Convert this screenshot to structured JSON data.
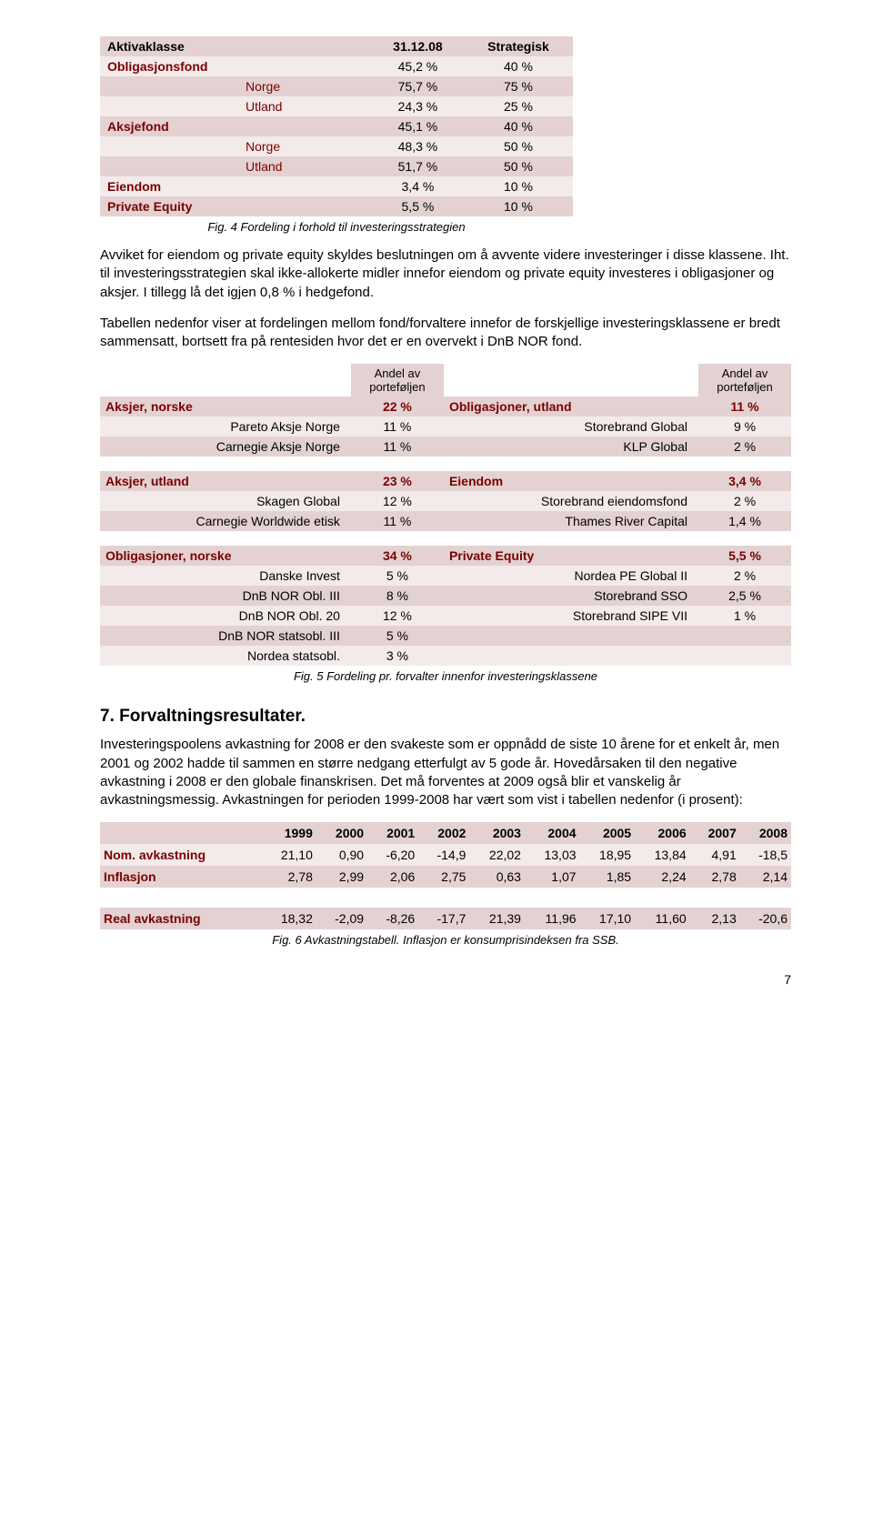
{
  "colors": {
    "accent": "#7a0000",
    "band_dark": "#e4d2d2",
    "band_light": "#f3eaea"
  },
  "t1": {
    "head": {
      "c1": "Aktivaklasse",
      "c2": "31.12.08",
      "c3": "Strategisk"
    },
    "rows": [
      {
        "label": "Obligasjonsfond",
        "v1": "45,2 %",
        "v2": "40 %",
        "cls": "r-light"
      },
      {
        "sub": "Norge",
        "v1": "75,7 %",
        "v2": "75 %",
        "cls": "r-dark"
      },
      {
        "sub": "Utland",
        "v1": "24,3 %",
        "v2": "25 %",
        "cls": "r-light"
      },
      {
        "label": "Aksjefond",
        "v1": "45,1 %",
        "v2": "40 %",
        "cls": "r-dark"
      },
      {
        "sub": "Norge",
        "v1": "48,3 %",
        "v2": "50 %",
        "cls": "r-light"
      },
      {
        "sub": "Utland",
        "v1": "51,7 %",
        "v2": "50 %",
        "cls": "r-dark"
      },
      {
        "label": "Eiendom",
        "v1": "3,4 %",
        "v2": "10 %",
        "cls": "r-light"
      },
      {
        "label": "Private Equity",
        "v1": "5,5 %",
        "v2": "10 %",
        "cls": "r-dark"
      }
    ],
    "caption": "Fig. 4 Fordeling i forhold til investeringsstrategien"
  },
  "para1": "Avviket for eiendom og private equity skyldes beslutningen om å avvente videre investeringer i disse klassene. Iht. til investeringsstrategien skal ikke-allokerte midler innefor eiendom og private equity investeres i obligasjoner og aksjer. I tillegg lå det igjen 0,8 % i hedgefond.",
  "para2": "Tabellen nedenfor viser at fordelingen mellom fond/forvaltere innefor de forskjellige investeringsklassene er bredt sammensatt, bortsett fra på rentesiden hvor det er en overvekt i DnB NOR fond.",
  "t2": {
    "hdr": "Andel av\nporteføljen",
    "g1": {
      "left": "Aksjer, norske",
      "lp": "22 %",
      "right": "Obligasjoner, utland",
      "rp": "11 %"
    },
    "r1a": {
      "l": "Pareto Aksje Norge",
      "lp": "11 %",
      "r": "Storebrand Global",
      "rp": "9 %"
    },
    "r1b": {
      "l": "Carnegie Aksje Norge",
      "lp": "11 %",
      "r": "KLP Global",
      "rp": "2 %"
    },
    "g2": {
      "left": "Aksjer, utland",
      "lp": "23 %",
      "right": "Eiendom",
      "rp": "3,4 %"
    },
    "r2a": {
      "l": "Skagen Global",
      "lp": "12 %",
      "r": "Storebrand eiendomsfond",
      "rp": "2 %"
    },
    "r2b": {
      "l": "Carnegie Worldwide etisk",
      "lp": "11 %",
      "r": "Thames River Capital",
      "rp": "1,4 %"
    },
    "g3": {
      "left": "Obligasjoner, norske",
      "lp": "34 %",
      "right": "Private Equity",
      "rp": "5,5 %"
    },
    "r3a": {
      "l": "Danske Invest",
      "lp": "5 %",
      "r": "Nordea PE Global II",
      "rp": "2 %"
    },
    "r3b": {
      "l": "DnB NOR Obl. III",
      "lp": "8 %",
      "r": "Storebrand SSO",
      "rp": "2,5 %"
    },
    "r3c": {
      "l": "DnB NOR Obl. 20",
      "lp": "12 %",
      "r": "Storebrand SIPE VII",
      "rp": "1 %"
    },
    "r3d": {
      "l": "DnB NOR statsobl. III",
      "lp": "5 %",
      "r": "",
      "rp": ""
    },
    "r3e": {
      "l": "Nordea statsobl.",
      "lp": "3 %",
      "r": "",
      "rp": ""
    },
    "caption": "Fig. 5 Fordeling pr. forvalter innenfor investeringsklassene"
  },
  "h2": "7.  Forvaltningsresultater.",
  "para3": "Investeringspoolens avkastning for 2008 er den svakeste som er oppnådd de siste 10 årene for et enkelt år, men 2001 og 2002 hadde til sammen en større nedgang etterfulgt av 5 gode år. Hovedårsaken til den negative avkastning i 2008 er den globale finanskrisen. Det må forventes at 2009 også blir et vanskelig år avkastningsmessig. Avkastningen for perioden 1999-2008 har vært som vist i tabellen nedenfor (i prosent):",
  "t3": {
    "years": [
      "1999",
      "2000",
      "2001",
      "2002",
      "2003",
      "2004",
      "2005",
      "2006",
      "2007",
      "2008"
    ],
    "rows": [
      {
        "label": "Nom. avkastning",
        "v": [
          "21,10",
          "0,90",
          "-6,20",
          "-14,9",
          "22,02",
          "13,03",
          "18,95",
          "13,84",
          "4,91",
          "-18,5"
        ],
        "cls": "row-a"
      },
      {
        "label": "Inflasjon",
        "v": [
          "2,78",
          "2,99",
          "2,06",
          "2,75",
          "0,63",
          "1,07",
          "1,85",
          "2,24",
          "2,78",
          "2,14"
        ],
        "cls": "row-b"
      },
      {
        "label": "Real avkastning",
        "v": [
          "18,32",
          "-2,09",
          "-8,26",
          "-17,7",
          "21,39",
          "11,96",
          "17,10",
          "11,60",
          "2,13",
          "-20,6"
        ],
        "cls": "row-b",
        "gap": true
      }
    ],
    "caption": "Fig. 6 Avkastningstabell. Inflasjon er konsumprisindeksen fra SSB."
  },
  "page": "7"
}
